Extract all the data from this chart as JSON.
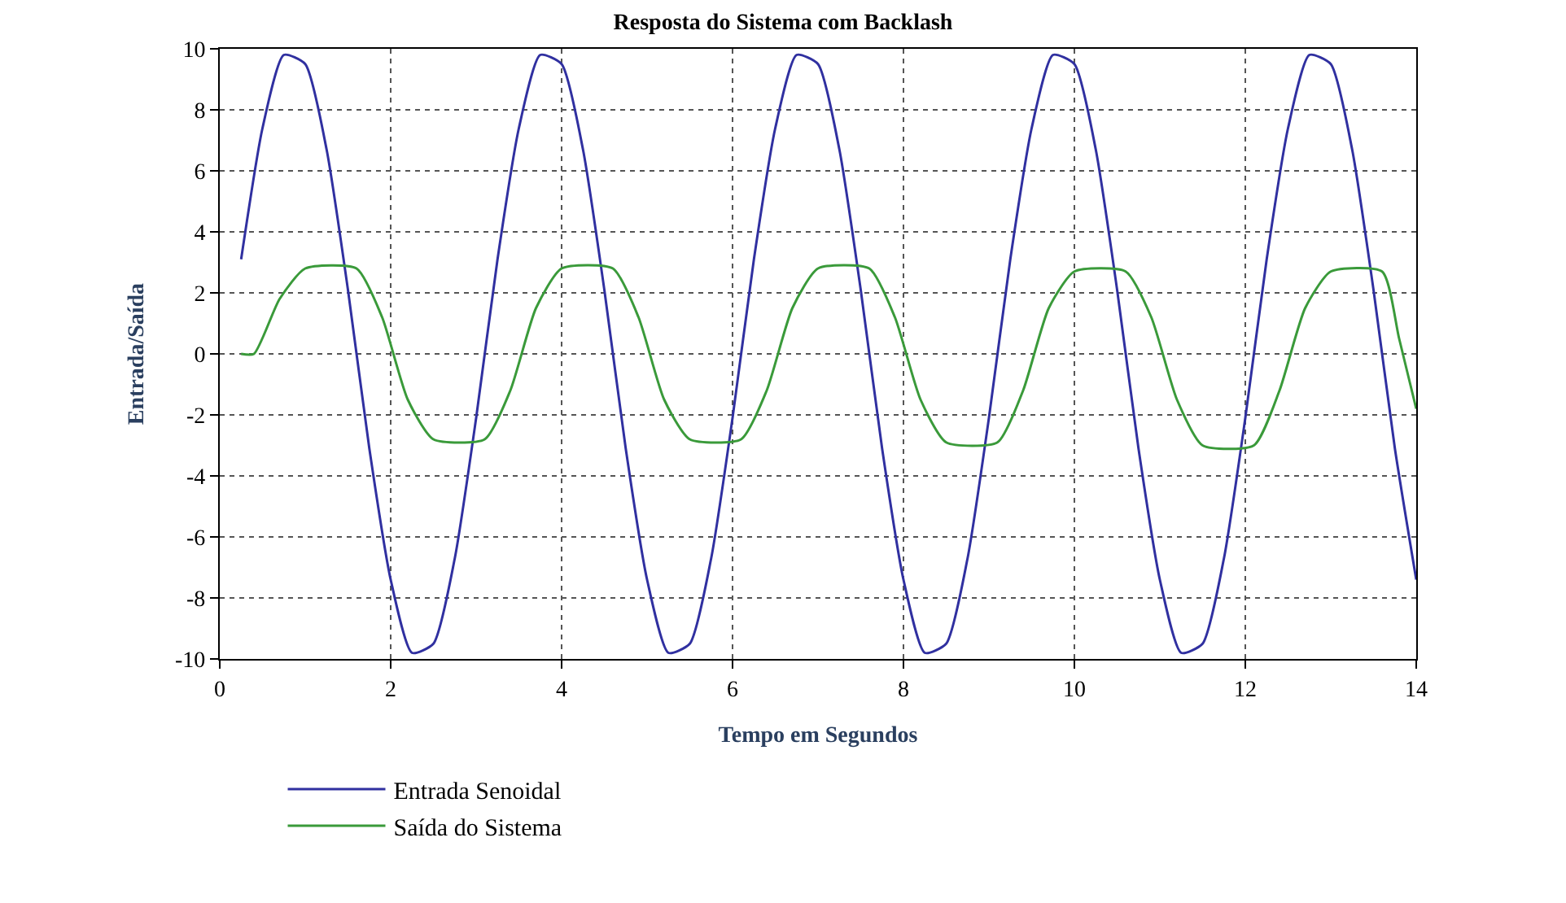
{
  "chart_data": {
    "type": "line",
    "title": "Resposta do Sistema com Backlash",
    "xlabel": "Tempo em Segundos",
    "ylabel": "Entrada/Saída",
    "xlim": [
      0,
      14
    ],
    "xticks": [
      0,
      2,
      4,
      6,
      8,
      10,
      12,
      14
    ],
    "ylim": [
      -10,
      10
    ],
    "yticks": [
      -10,
      -8,
      -6,
      -4,
      -2,
      0,
      2,
      4,
      6,
      8,
      10
    ],
    "grid": true,
    "legend": "bottom",
    "marker": "none",
    "line_style": "solid",
    "series": [
      {
        "name": "Entrada Senoidal",
        "color": "#3030a0",
        "x": [
          0.25,
          0.5,
          0.75,
          1,
          1.25,
          1.5,
          1.75,
          2,
          2.25,
          2.5,
          2.75,
          3,
          3.25,
          3.5,
          3.75,
          4,
          4.25,
          4.5,
          4.75,
          5,
          5.25,
          5.5,
          5.75,
          6,
          6.25,
          6.5,
          6.75,
          7,
          7.25,
          7.5,
          7.75,
          8,
          8.25,
          8.5,
          8.75,
          9,
          9.25,
          9.5,
          9.75,
          10,
          10.25,
          10.5,
          10.75,
          11,
          11.25,
          11.5,
          11.75,
          12,
          12.25,
          12.5,
          12.75,
          13,
          13.25,
          13.5,
          13.75,
          14
        ],
        "values": [
          3.1,
          7.4,
          9.8,
          9.5,
          6.7,
          2.1,
          -3.1,
          -7.4,
          -9.8,
          -9.5,
          -6.7,
          -2.1,
          3.1,
          7.4,
          9.8,
          9.5,
          6.7,
          2.1,
          -3.1,
          -7.4,
          -9.8,
          -9.5,
          -6.7,
          -2.1,
          3.1,
          7.4,
          9.8,
          9.5,
          6.7,
          2.1,
          -3.1,
          -7.4,
          -9.8,
          -9.5,
          -6.7,
          -2.1,
          3.1,
          7.4,
          9.8,
          9.5,
          6.7,
          2.1,
          -3.1,
          -7.4,
          -9.8,
          -9.5,
          -6.7,
          -2.1,
          3.1,
          7.4,
          9.8,
          9.5,
          6.7,
          2.1,
          -3.1,
          -7.4
        ]
      },
      {
        "name": "Saída do Sistema",
        "color": "#3a9a3a",
        "x": [
          0.25,
          0.4,
          0.7,
          1.0,
          1.6,
          1.9,
          2.2,
          2.5,
          3.1,
          3.4,
          3.7,
          4.0,
          4.6,
          4.9,
          5.2,
          5.5,
          6.1,
          6.4,
          6.7,
          7.0,
          7.6,
          7.9,
          8.2,
          8.5,
          9.1,
          9.4,
          9.7,
          10.0,
          10.6,
          10.9,
          11.2,
          11.5,
          12.1,
          12.4,
          12.7,
          13.0,
          13.6,
          13.8,
          14.0
        ],
        "values": [
          0,
          0,
          1.8,
          2.8,
          2.8,
          1.2,
          -1.5,
          -2.8,
          -2.8,
          -1.2,
          1.5,
          2.8,
          2.8,
          1.2,
          -1.5,
          -2.8,
          -2.8,
          -1.2,
          1.5,
          2.8,
          2.8,
          1.2,
          -1.5,
          -2.9,
          -2.9,
          -1.2,
          1.5,
          2.7,
          2.7,
          1.2,
          -1.5,
          -3.0,
          -3.0,
          -1.2,
          1.5,
          2.7,
          2.7,
          0.5,
          -1.8
        ]
      }
    ]
  }
}
